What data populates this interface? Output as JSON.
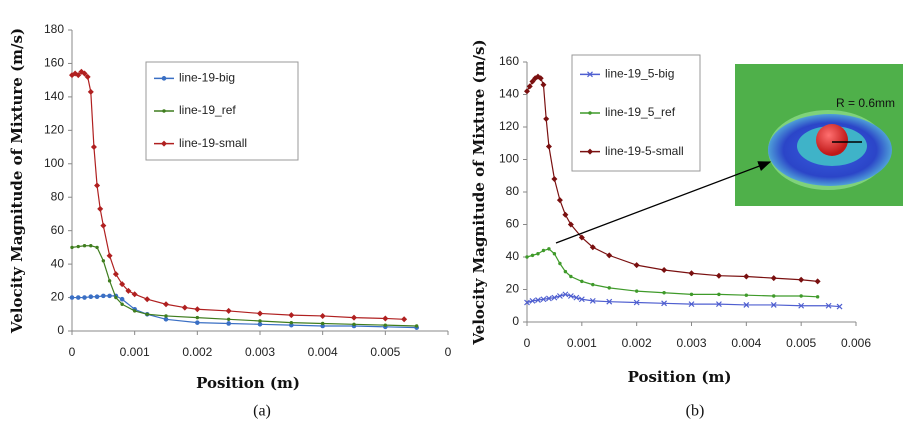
{
  "chart_data": [
    {
      "type": "line",
      "xlabel": "Position (m)",
      "ylabel": "Velocity Magnitude of Mixture (m/s)",
      "caption": "(a)",
      "xlim": [
        0,
        0.006
      ],
      "xticks": [
        0,
        0.001,
        0.002,
        0.003,
        0.004,
        0.005,
        {
          "value": 0.006,
          "label": "0"
        }
      ],
      "ylim": [
        0,
        180
      ],
      "yticks": [
        0,
        20,
        40,
        60,
        80,
        100,
        120,
        140,
        160,
        180
      ],
      "series": [
        {
          "name": "line-19-big",
          "color": "#3a6fc4",
          "marker": "circle",
          "x": [
            0,
            0.0001,
            0.0002,
            0.0003,
            0.0004,
            0.0005,
            0.0006,
            0.0007,
            0.0008,
            0.001,
            0.0012,
            0.0015,
            0.002,
            0.0025,
            0.003,
            0.0035,
            0.004,
            0.0045,
            0.005,
            0.0055
          ],
          "values": [
            20,
            20,
            20,
            20.5,
            20.5,
            21,
            21,
            21,
            19,
            13,
            10,
            7,
            5,
            4.5,
            4,
            3.5,
            3,
            3,
            2.5,
            2
          ]
        },
        {
          "name": "line-19_ref",
          "color": "#3f7d1e",
          "marker": "dot",
          "x": [
            0,
            0.0001,
            0.0002,
            0.0003,
            0.0004,
            0.0005,
            0.0006,
            0.0007,
            0.0008,
            0.001,
            0.0012,
            0.0015,
            0.002,
            0.0025,
            0.003,
            0.0035,
            0.004,
            0.0045,
            0.005,
            0.0055
          ],
          "values": [
            50,
            50.5,
            51,
            51,
            50,
            42,
            30,
            20,
            16,
            12,
            10,
            9,
            8,
            7,
            6,
            5,
            4.5,
            4,
            3.5,
            3
          ]
        },
        {
          "name": "line-19-small",
          "color": "#b02020",
          "marker": "diamond",
          "x": [
            0,
            5e-05,
            0.0001,
            0.00015,
            0.0002,
            0.00025,
            0.0003,
            0.00035,
            0.0004,
            0.00045,
            0.0005,
            0.0006,
            0.0007,
            0.0008,
            0.0009,
            0.001,
            0.0012,
            0.0015,
            0.0018,
            0.002,
            0.0025,
            0.003,
            0.0035,
            0.004,
            0.0045,
            0.005,
            0.0053
          ],
          "values": [
            153,
            154,
            153,
            155,
            154,
            152,
            143,
            110,
            87,
            73,
            63,
            45,
            34,
            28,
            24,
            22,
            19,
            16,
            14,
            13,
            12,
            10.5,
            9.5,
            9,
            8,
            7.5,
            7
          ]
        }
      ]
    },
    {
      "type": "line",
      "xlabel": "Position (m)",
      "ylabel": "Velocity Magnitude of Mixture (m/s)",
      "caption": "(b)",
      "annotation": "R = 0.6mm",
      "xlim": [
        0,
        0.006
      ],
      "xticks": [
        0,
        0.001,
        0.002,
        0.003,
        0.004,
        0.005,
        0.006
      ],
      "ylim": [
        0,
        160
      ],
      "yticks": [
        0,
        20,
        40,
        60,
        80,
        100,
        120,
        140,
        160
      ],
      "series": [
        {
          "name": "line-19_5-big",
          "color": "#4f5fd0",
          "marker": "x",
          "x": [
            0,
            0.0001,
            0.0002,
            0.0003,
            0.0004,
            0.0005,
            0.0006,
            0.0007,
            0.0008,
            0.0009,
            0.001,
            0.0012,
            0.0015,
            0.002,
            0.0025,
            0.003,
            0.0035,
            0.004,
            0.0045,
            0.005,
            0.0055,
            0.0057
          ],
          "values": [
            12,
            13,
            13.5,
            14,
            14.5,
            15,
            16,
            17,
            16,
            15,
            14,
            13,
            12.5,
            12,
            11.5,
            11,
            11,
            10.5,
            10.5,
            10,
            10,
            9.5
          ]
        },
        {
          "name": "line-19_5_ref",
          "color": "#3f9a2a",
          "marker": "dot",
          "x": [
            0,
            0.0001,
            0.0002,
            0.0003,
            0.0004,
            0.0005,
            0.0006,
            0.0007,
            0.0008,
            0.001,
            0.0012,
            0.0015,
            0.002,
            0.0025,
            0.003,
            0.0035,
            0.004,
            0.0045,
            0.005,
            0.0053
          ],
          "values": [
            40,
            41,
            42,
            44,
            45,
            42,
            36,
            31,
            28,
            25,
            23,
            21,
            19,
            18,
            17,
            17,
            16.5,
            16,
            16,
            15.5
          ]
        },
        {
          "name": "line-19-5-small",
          "color": "#7a1010",
          "marker": "diamond",
          "x": [
            0,
            5e-05,
            0.0001,
            0.00015,
            0.0002,
            0.00025,
            0.0003,
            0.00035,
            0.0004,
            0.0005,
            0.0006,
            0.0007,
            0.0008,
            0.001,
            0.0012,
            0.0015,
            0.002,
            0.0025,
            0.003,
            0.0035,
            0.004,
            0.0045,
            0.005,
            0.0053
          ],
          "values": [
            142,
            145,
            148,
            150,
            151,
            150,
            146,
            125,
            108,
            88,
            75,
            66,
            60,
            52,
            46,
            41,
            35,
            32,
            30,
            28.5,
            28,
            27,
            26,
            25
          ]
        }
      ]
    }
  ]
}
